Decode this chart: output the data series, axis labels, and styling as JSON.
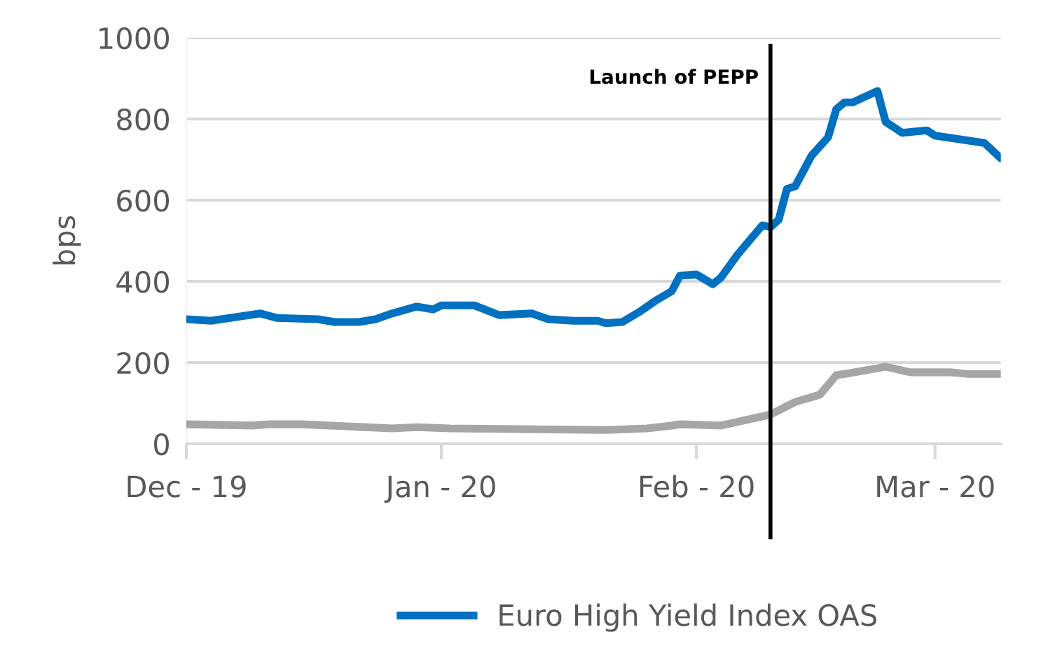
{
  "chart_data": {
    "type": "line",
    "ylabel": "bps",
    "xlim": [
      "2019-12-01",
      "2020-03-09"
    ],
    "ylim": [
      0,
      1000
    ],
    "yticks": [
      0,
      200,
      400,
      600,
      800,
      1000
    ],
    "xticks": [
      {
        "value": "2019-12-01",
        "label": "Dec - 19"
      },
      {
        "value": "2020-01-01",
        "label": "Jan - 20"
      },
      {
        "value": "2020-02-01",
        "label": "Feb - 20"
      },
      {
        "value": "2020-03-01",
        "label": "Mar - 20"
      }
    ],
    "grid": "y",
    "legend": "bottom",
    "marker": "none",
    "line_style": "solid",
    "ref_lines": [
      {
        "axis": "x",
        "value": "2020-02-10",
        "label": "Launch of PEPP",
        "color": "#000000"
      }
    ],
    "series": [
      {
        "name": "Euro High Yield Index OAS",
        "color": "#0070c0",
        "x": [
          "2019-12-01",
          "2019-12-04",
          "2019-12-10",
          "2019-12-12",
          "2019-12-17",
          "2019-12-19",
          "2019-12-22",
          "2019-12-24",
          "2019-12-26",
          "2019-12-29",
          "2019-12-31",
          "2020-01-01",
          "2020-01-05",
          "2020-01-08",
          "2020-01-12",
          "2020-01-14",
          "2020-01-17",
          "2020-01-20",
          "2020-01-21",
          "2020-01-23",
          "2020-01-25",
          "2020-01-27",
          "2020-01-29",
          "2020-01-30",
          "2020-02-01",
          "2020-02-03",
          "2020-02-04",
          "2020-02-06",
          "2020-02-09",
          "2020-02-10",
          "2020-02-11",
          "2020-02-12",
          "2020-02-13",
          "2020-02-15",
          "2020-02-17",
          "2020-02-18",
          "2020-02-19",
          "2020-02-20",
          "2020-02-23",
          "2020-02-24",
          "2020-02-26",
          "2020-02-29",
          "2020-03-01",
          "2020-03-07",
          "2020-03-09"
        ],
        "values": [
          307,
          303,
          321,
          310,
          307,
          300,
          300,
          307,
          321,
          338,
          331,
          341,
          341,
          317,
          321,
          307,
          303,
          303,
          297,
          300,
          324,
          352,
          376,
          414,
          417,
          393,
          410,
          466,
          538,
          534,
          552,
          628,
          634,
          710,
          755,
          824,
          841,
          841,
          869,
          793,
          766,
          772,
          759,
          741,
          703
        ]
      },
      {
        "color": "#a6a6a6",
        "x": [
          "2019-12-01",
          "2019-12-09",
          "2019-12-11",
          "2019-12-15",
          "2019-12-26",
          "2019-12-29",
          "2020-01-02",
          "2020-01-21",
          "2020-01-26",
          "2020-01-29",
          "2020-01-30",
          "2020-02-04",
          "2020-02-10",
          "2020-02-13",
          "2020-02-16",
          "2020-02-18",
          "2020-02-19",
          "2020-02-23",
          "2020-02-24",
          "2020-02-27",
          "2020-03-03",
          "2020-03-05",
          "2020-03-09"
        ],
        "values": [
          48,
          45,
          48,
          48,
          38,
          41,
          38,
          34,
          38,
          45,
          48,
          45,
          72,
          103,
          121,
          169,
          172,
          186,
          190,
          176,
          176,
          172,
          172
        ]
      }
    ]
  }
}
